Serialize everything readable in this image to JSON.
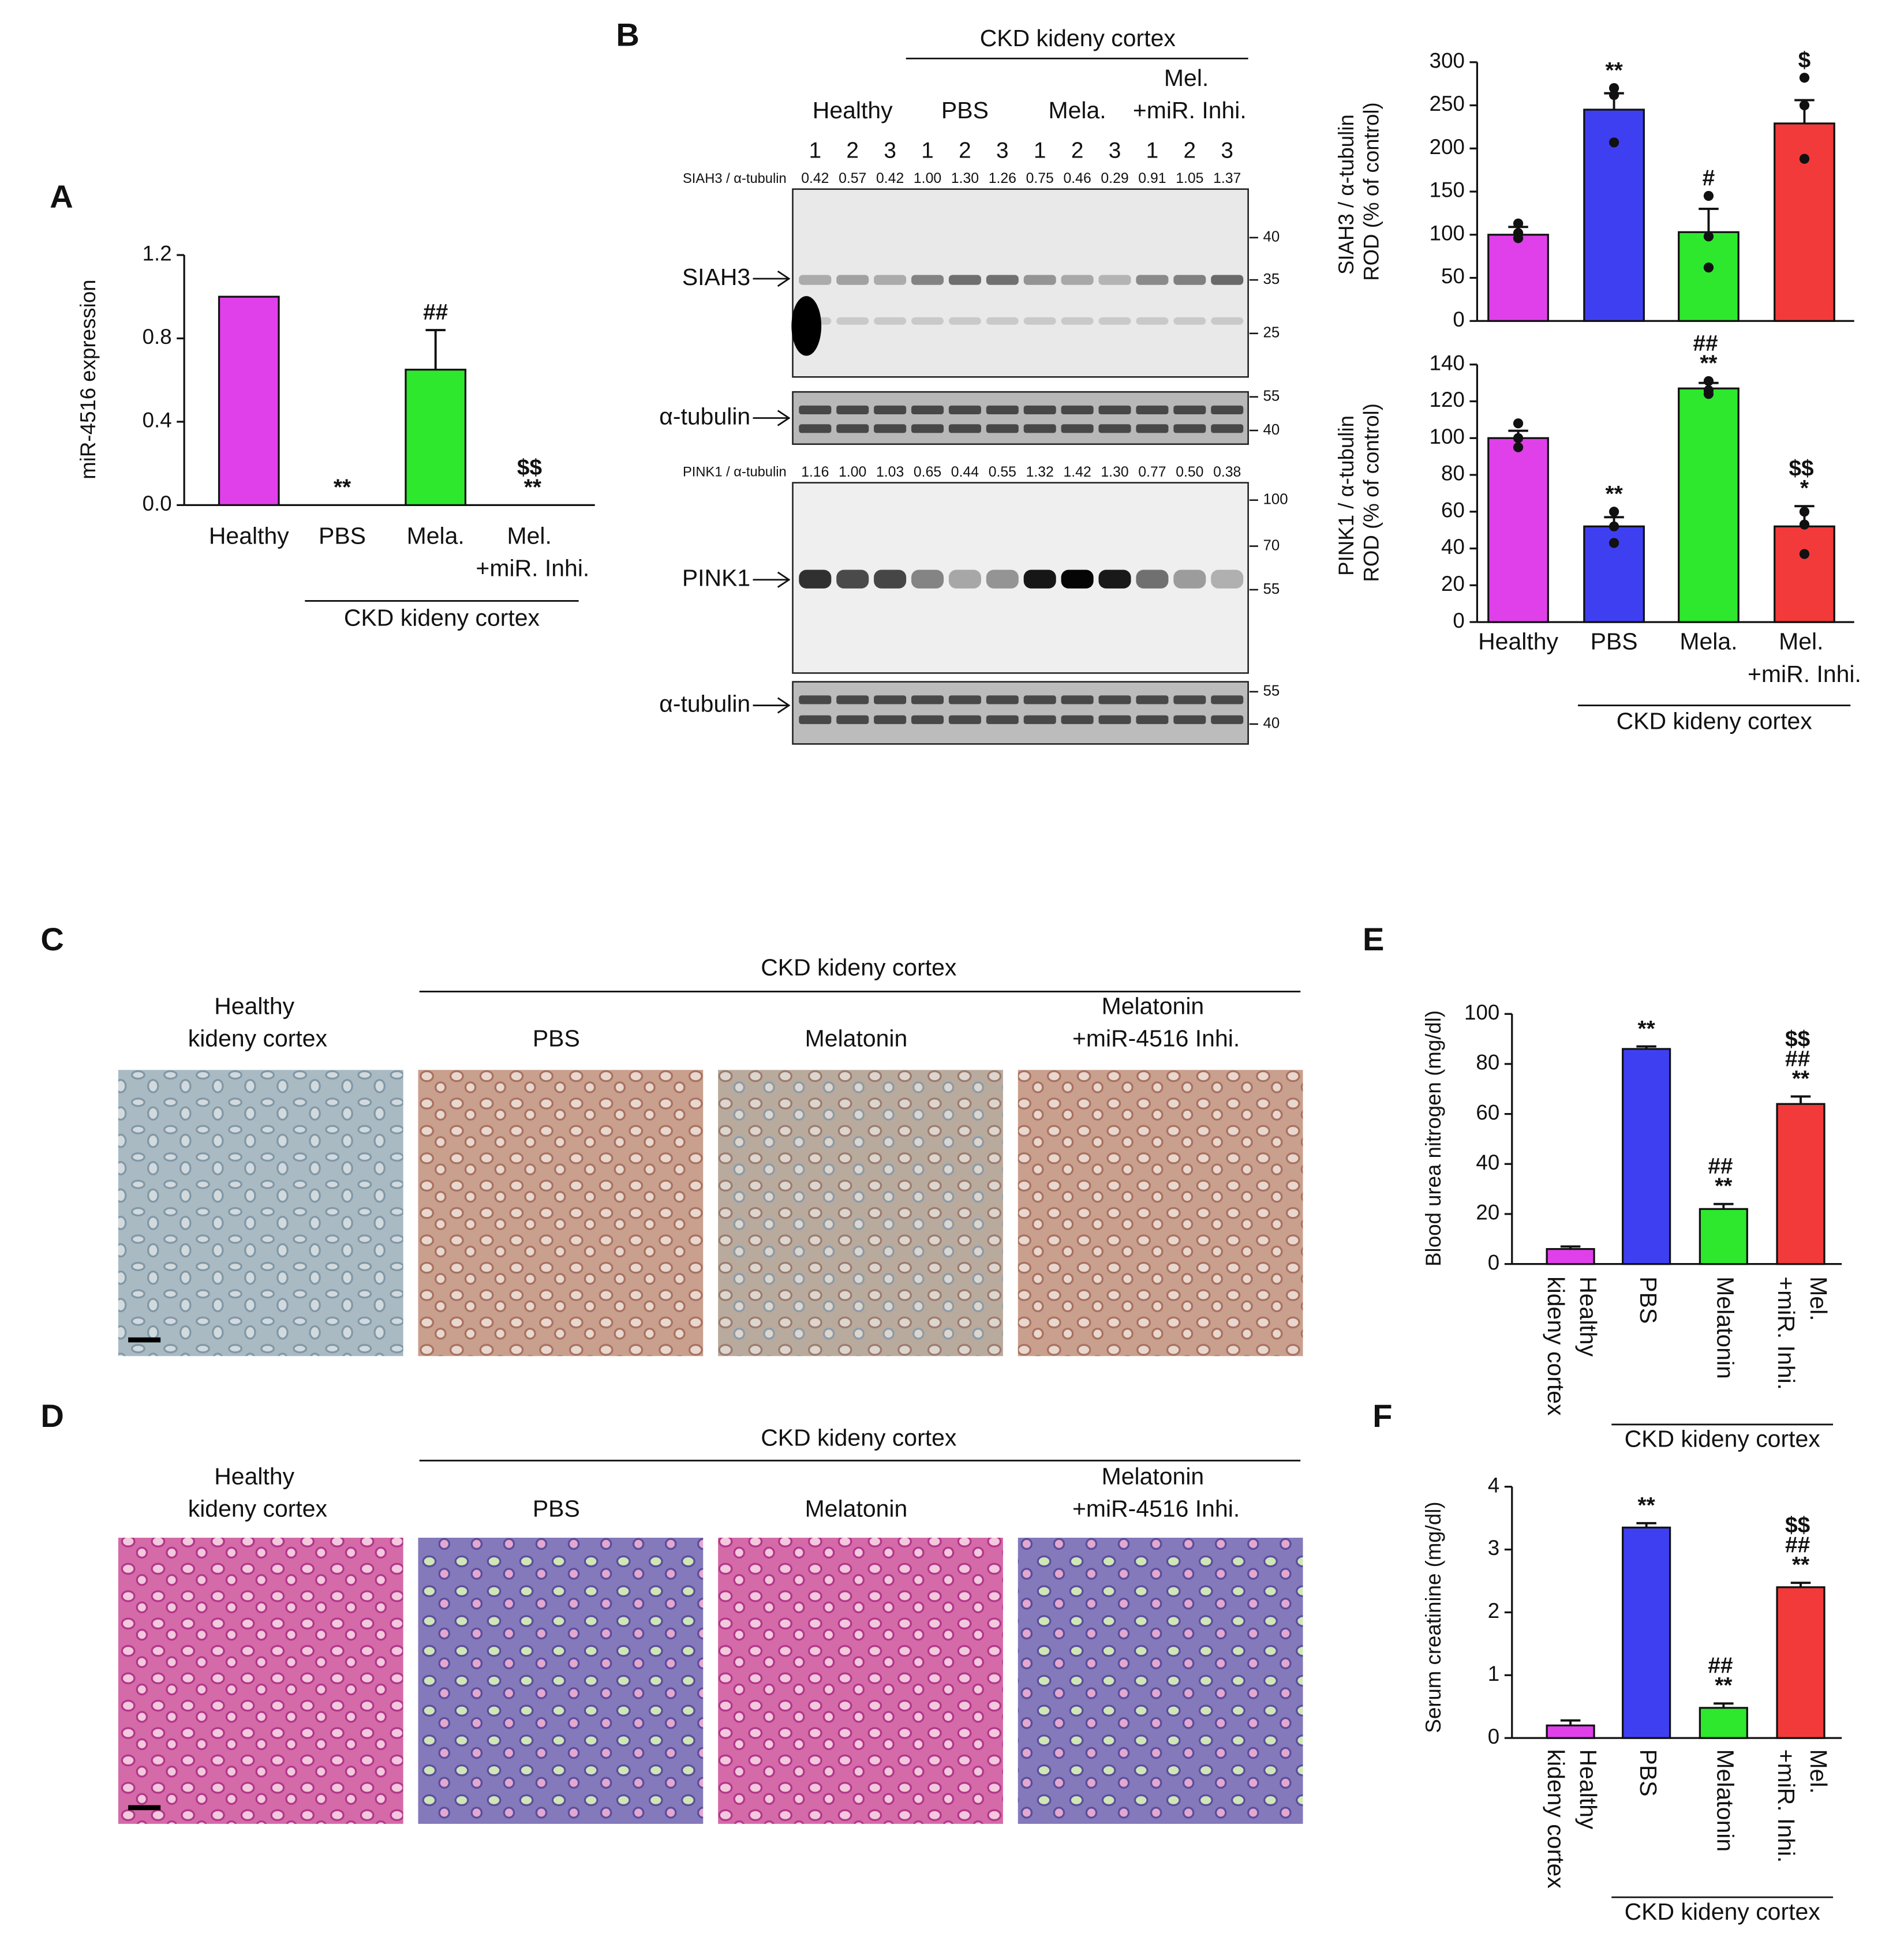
{
  "chart_data": [
    {
      "type": "bar",
      "panel": "A",
      "ylabel": "miR-4516 expression",
      "categories": [
        "Healthy",
        "PBS",
        "Mela.",
        "Mel.\n+miR. Inhi."
      ],
      "values": [
        1.0,
        0,
        0.65,
        0
      ],
      "errors": [
        null,
        null,
        0.19,
        null
      ],
      "value_annotations": [
        null,
        "**",
        "##",
        "$$\n**"
      ],
      "colors": [
        "#e040ea",
        "#3f3ff2",
        "#2ee82e",
        "#f23a3a"
      ],
      "ylim": [
        0,
        1.2
      ],
      "yticks": [
        {
          "value": 0,
          "label": "0.0"
        },
        0.4,
        0.8,
        1.2
      ],
      "group_label": "CKD kideny cortex"
    },
    {
      "type": "bar",
      "ylabel": "SIAH3 / α-tubulin\nROD (% of control)",
      "values": [
        100,
        245,
        103,
        229
      ],
      "errors": [
        9,
        19,
        27,
        27
      ],
      "points": [
        [
          113,
          102,
          96
        ],
        [
          270,
          262,
          207
        ],
        [
          145,
          98,
          62
        ],
        [
          282,
          250,
          188
        ]
      ],
      "value_annotations": [
        null,
        "**",
        "#",
        "$"
      ],
      "colors": [
        "#e040ea",
        "#3f3ff2",
        "#2ee82e",
        "#f23a3a"
      ],
      "ylim": [
        0,
        300
      ],
      "yticks": [
        0,
        50,
        100,
        150,
        200,
        250,
        300
      ]
    },
    {
      "type": "bar",
      "ylabel": "PINK1 / α-tubulin\nROD (% of control)",
      "categories": [
        "Healthy",
        "PBS",
        "Mela.",
        "Mel.\n+miR. Inhi."
      ],
      "values": [
        100,
        52,
        127,
        52
      ],
      "errors": [
        4,
        5,
        3,
        11
      ],
      "points": [
        [
          108,
          100,
          95
        ],
        [
          60,
          52,
          43
        ],
        [
          131,
          126,
          124
        ],
        [
          60,
          53,
          37
        ]
      ],
      "value_annotations": [
        null,
        "**",
        "##\n**",
        "$$\n*"
      ],
      "colors": [
        "#e040ea",
        "#3f3ff2",
        "#2ee82e",
        "#f23a3a"
      ],
      "ylim": [
        0,
        140
      ],
      "yticks": [
        0,
        20,
        40,
        60,
        80,
        100,
        120,
        140
      ],
      "group_label": "CKD kideny cortex"
    },
    {
      "type": "bar",
      "panel": "E",
      "ylabel": "Blood urea nitrogen (mg/dl)",
      "categories": [
        "Healthy\nkideny cortex",
        "PBS",
        "Melatonin",
        "Mel.\n+miR. Inhi."
      ],
      "x_label_rotation": 90,
      "values": [
        6,
        86,
        22,
        64
      ],
      "errors": [
        1,
        1,
        2,
        3
      ],
      "value_annotations": [
        null,
        "**",
        "##\n**",
        "$$\n##\n**"
      ],
      "colors": [
        "#e040ea",
        "#3f3ff2",
        "#2ee82e",
        "#f23a3a"
      ],
      "ylim": [
        0,
        100
      ],
      "yticks": [
        0,
        20,
        40,
        60,
        80,
        100
      ],
      "group_label": "CKD kideny cortex"
    },
    {
      "type": "bar",
      "panel": "F",
      "ylabel": "Serum creatinine (mg/dl)",
      "categories": [
        "Healthy\nkideny cortex",
        "PBS",
        "Melatonin",
        "Mel.\n+miR. Inhi."
      ],
      "x_label_rotation": 90,
      "values": [
        0.2,
        3.35,
        0.48,
        2.4
      ],
      "errors": [
        0.08,
        0.07,
        0.07,
        0.07
      ],
      "value_annotations": [
        null,
        "**",
        "##\n**",
        "$$\n##\n**"
      ],
      "colors": [
        "#e040ea",
        "#3f3ff2",
        "#2ee82e",
        "#f23a3a"
      ],
      "ylim": [
        0,
        4
      ],
      "yticks": [
        0,
        1,
        2,
        3,
        4
      ],
      "group_label": "CKD kideny cortex"
    }
  ],
  "blot": {
    "panel": "B",
    "header": "CKD kideny cortex",
    "groups": [
      "Healthy",
      "PBS",
      "Mela.",
      "Mel.\n+miR. Inhi."
    ],
    "lanes": [
      "1",
      "2",
      "3",
      "1",
      "2",
      "3",
      "1",
      "2",
      "3",
      "1",
      "2",
      "3"
    ],
    "siah3_ratio_label": "SIAH3 / α-tubulin",
    "siah3_ratios": [
      "0.42",
      "0.57",
      "0.42",
      "1.00",
      "1.30",
      "1.26",
      "0.75",
      "0.46",
      "0.29",
      "0.91",
      "1.05",
      "1.37"
    ],
    "pink1_ratio_label": "PINK1 / α-tubulin",
    "pink1_ratios": [
      "1.16",
      "1.00",
      "1.03",
      "0.65",
      "0.44",
      "0.55",
      "1.32",
      "1.42",
      "1.30",
      "0.77",
      "0.50",
      "0.38"
    ],
    "blots": [
      {
        "label": "SIAH3",
        "markers": [
          "40",
          "35",
          "25"
        ]
      },
      {
        "label": "α-tubulin",
        "markers": [
          "55",
          "40"
        ]
      },
      {
        "label": "PINK1",
        "markers": [
          "100",
          "70",
          "55"
        ]
      },
      {
        "label": "α-tubulin",
        "markers": [
          "55",
          "40"
        ]
      }
    ]
  },
  "images": [
    {
      "panel": "C",
      "header": "CKD kideny cortex",
      "columns": [
        "Healthy\nkideny cortex",
        "PBS",
        "Melatonin",
        "Melatonin\n+miR-4516 Inhi."
      ]
    },
    {
      "panel": "D",
      "header": "CKD kideny cortex",
      "columns": [
        "Healthy\nkideny cortex",
        "PBS",
        "Melatonin",
        "Melatonin\n+miR-4516 Inhi."
      ]
    }
  ]
}
